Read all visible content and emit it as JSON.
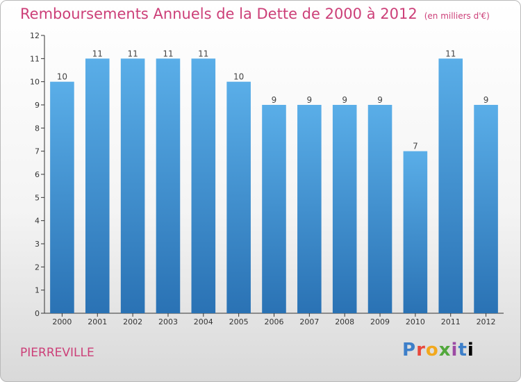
{
  "header": {
    "title": "Remboursements Annuels de la Dette de 2000 à 2012",
    "unit": "(en milliers d'€)"
  },
  "footer": {
    "commune": "PIERREVILLE",
    "logo_letters": [
      "P",
      "r",
      "o",
      "x",
      "i",
      "t",
      "i"
    ]
  },
  "colors": {
    "accent": "#cc3f78",
    "bar_top": "#5aaee8",
    "bar_bottom": "#2a72b4",
    "axis": "#333333"
  },
  "chart_data": {
    "type": "bar",
    "title": "Remboursements Annuels de la Dette de 2000 à 2012",
    "xlabel": "",
    "ylabel": "",
    "categories": [
      "2000",
      "2001",
      "2002",
      "2003",
      "2004",
      "2005",
      "2006",
      "2007",
      "2008",
      "2009",
      "2010",
      "2011",
      "2012"
    ],
    "values": [
      10,
      11,
      11,
      11,
      11,
      10,
      9,
      9,
      9,
      9,
      7,
      11,
      9
    ],
    "ylim": [
      0,
      12
    ],
    "yticks": [
      0,
      1,
      2,
      3,
      4,
      5,
      6,
      7,
      8,
      9,
      10,
      11,
      12
    ],
    "grid": false,
    "legend": "none"
  }
}
